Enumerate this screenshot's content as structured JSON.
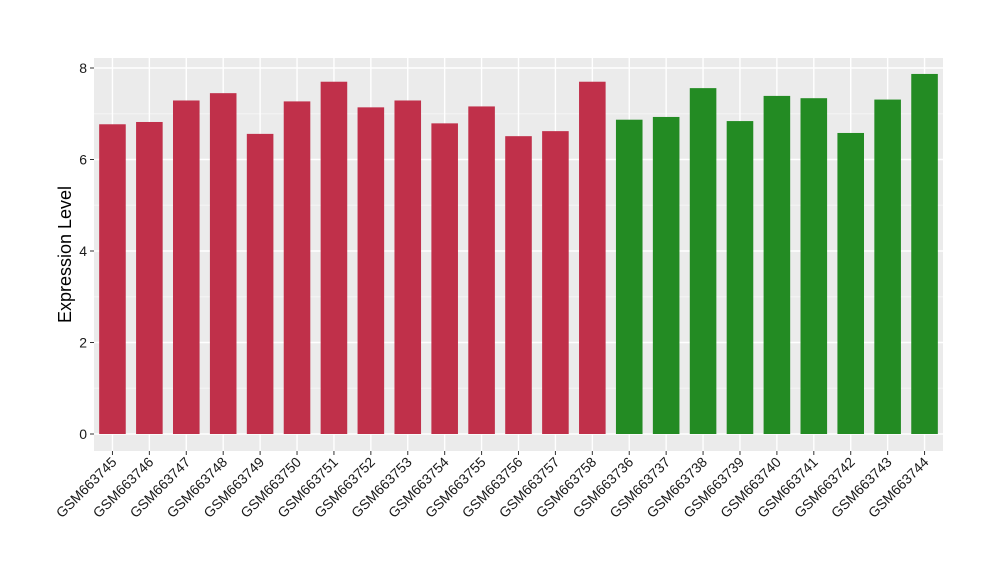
{
  "chart_data": {
    "type": "bar",
    "title": "",
    "xlabel": "",
    "ylabel": "Expression Level",
    "ylim": [
      0,
      8.2
    ],
    "yticks": [
      0,
      2,
      4,
      6,
      8
    ],
    "grid": true,
    "legend": "none",
    "categories": [
      "GSM663745",
      "GSM663746",
      "GSM663747",
      "GSM663748",
      "GSM663749",
      "GSM663750",
      "GSM663751",
      "GSM663752",
      "GSM663753",
      "GSM663754",
      "GSM663755",
      "GSM663756",
      "GSM663757",
      "GSM663758",
      "GSM663736",
      "GSM663737",
      "GSM663738",
      "GSM663739",
      "GSM663740",
      "GSM663741",
      "GSM663742",
      "GSM663743",
      "GSM663744"
    ],
    "values": [
      6.77,
      6.82,
      7.29,
      7.45,
      6.56,
      7.27,
      7.7,
      7.14,
      7.29,
      6.79,
      7.16,
      6.51,
      6.62,
      7.7,
      6.87,
      6.93,
      7.56,
      6.84,
      7.39,
      7.34,
      6.58,
      7.31,
      7.87
    ],
    "groups": [
      "A",
      "A",
      "A",
      "A",
      "A",
      "A",
      "A",
      "A",
      "A",
      "A",
      "A",
      "A",
      "A",
      "A",
      "B",
      "B",
      "B",
      "B",
      "B",
      "B",
      "B",
      "B",
      "B"
    ],
    "group_colors": {
      "A": "#c0304a",
      "B": "#238b23"
    },
    "panel_background": "#ebebeb",
    "grid_major_color": "#ffffff",
    "grid_minor_color": "#f5f5f5"
  }
}
